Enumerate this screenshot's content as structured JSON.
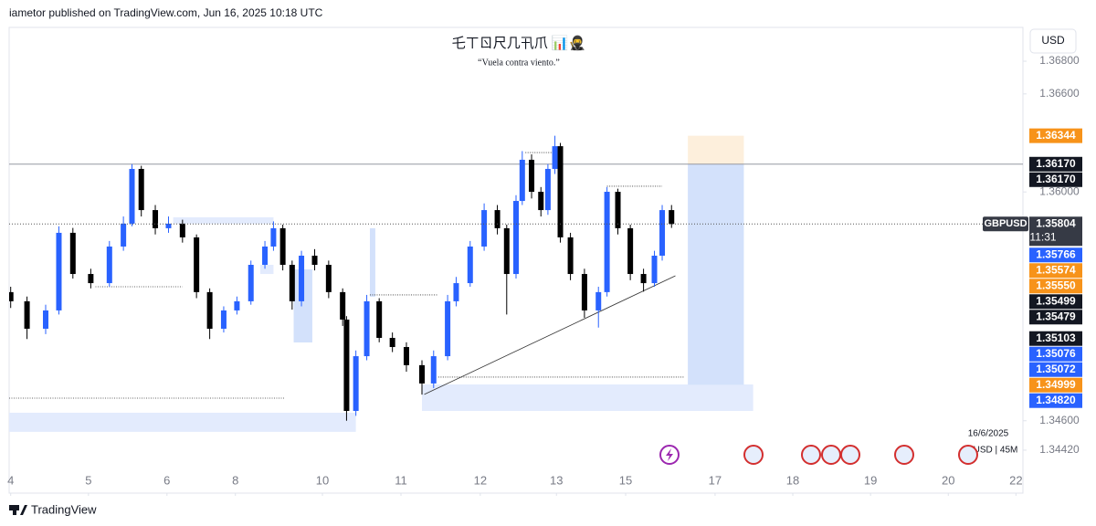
{
  "header": "iametor published on TradingView.com, Jun 16, 2025 10:18 UTC",
  "footer": "TradingView",
  "currency_button": "USD",
  "date_label": "16/6/2025",
  "interval_label": "USD | 45M",
  "chart_data": {
    "type": "candlestick",
    "title": "乇ㄒㄖ尺几卂爪 📊🥷",
    "subtitle": "“Vuela contra viento.”",
    "up_color": "#2962ff",
    "down_color": "#000000",
    "xlim": [
      -0.02,
      13.02
    ],
    "ylim": [
      1.34157,
      1.37007
    ],
    "xticks": [
      {
        "value": 0,
        "label": "4"
      },
      {
        "value": 1,
        "label": "5"
      },
      {
        "value": 2.01,
        "label": "6"
      },
      {
        "value": 2.89,
        "label": "8"
      },
      {
        "value": 4.01,
        "label": "10"
      },
      {
        "value": 5.02,
        "label": "11"
      },
      {
        "value": 6.04,
        "label": "12"
      },
      {
        "value": 7.02,
        "label": "13"
      },
      {
        "value": 7.91,
        "label": "15"
      },
      {
        "value": 9.06,
        "label": "17"
      },
      {
        "value": 10.06,
        "label": "18"
      },
      {
        "value": 11.06,
        "label": "19"
      },
      {
        "value": 12.06,
        "label": "20"
      },
      {
        "value": 12.93,
        "label": "22"
      }
    ],
    "yticks": [
      {
        "value": 1.368,
        "label": "1.36800"
      },
      {
        "value": 1.366,
        "label": "1.36600"
      },
      {
        "value": 1.36,
        "label": "1.36000"
      },
      {
        "value": 1.346,
        "label": "1.34600"
      },
      {
        "value": 1.3442,
        "label": "1.34420"
      }
    ],
    "candles": {
      "x": [
        0,
        0.21,
        0.45,
        0.62,
        0.8,
        1.03,
        1.27,
        1.45,
        1.56,
        1.68,
        1.86,
        2.03,
        2.21,
        2.39,
        2.56,
        2.74,
        2.91,
        3.09,
        3.27,
        3.38,
        3.5,
        3.62,
        3.74,
        3.91,
        4.09,
        4.27,
        4.32,
        4.44,
        4.58,
        4.74,
        4.91,
        5.09,
        5.29,
        5.44,
        5.62,
        5.73,
        5.91,
        6.09,
        6.26,
        6.38,
        6.5,
        6.58,
        6.7,
        6.82,
        6.91,
        7.0,
        7.07,
        7.2,
        7.38,
        7.56,
        7.67,
        7.81,
        7.97,
        8.14,
        8.28,
        8.38,
        8.5
      ],
      "open": [
        1.35387,
        1.35331,
        1.35163,
        1.35275,
        1.3575,
        1.35498,
        1.35442,
        1.35666,
        1.35806,
        1.36141,
        1.35889,
        1.35778,
        1.35806,
        1.35722,
        1.35387,
        1.35163,
        1.35275,
        1.35331,
        1.35554,
        1.35666,
        1.35778,
        1.35554,
        1.35331,
        1.3561,
        1.35554,
        1.35387,
        1.35219,
        1.3466,
        1.34995,
        1.35331,
        1.35107,
        1.35051,
        1.3494,
        1.34828,
        1.34995,
        1.35331,
        1.35442,
        1.35666,
        1.35889,
        1.35778,
        1.35498,
        1.35945,
        1.36197,
        1.36001,
        1.35889,
        1.36141,
        1.3628,
        1.35722,
        1.35498,
        1.35275,
        1.35387,
        1.36001,
        1.35778,
        1.35498,
        1.35442,
        1.3561,
        1.35889
      ],
      "high": [
        1.3542,
        1.3536,
        1.3531,
        1.3579,
        1.3578,
        1.3553,
        1.357,
        1.3585,
        1.3617,
        1.3616,
        1.3592,
        1.3585,
        1.3583,
        1.3574,
        1.3541,
        1.353,
        1.3536,
        1.3558,
        1.357,
        1.3582,
        1.358,
        1.3558,
        1.3564,
        1.3565,
        1.3558,
        1.3541,
        1.3524,
        1.3503,
        1.3537,
        1.3535,
        1.3514,
        1.3508,
        1.3497,
        1.3503,
        1.3537,
        1.3548,
        1.357,
        1.3593,
        1.3592,
        1.358,
        1.3598,
        1.3625,
        1.3623,
        1.3603,
        1.3617,
        1.36344,
        1.363,
        1.3575,
        1.3553,
        1.3542,
        1.3603,
        1.3602,
        1.358,
        1.3553,
        1.3564,
        1.3592,
        1.3592
      ],
      "low": [
        1.3529,
        1.351,
        1.3513,
        1.3525,
        1.3547,
        1.3541,
        1.3542,
        1.3564,
        1.3579,
        1.3585,
        1.3574,
        1.3575,
        1.3569,
        1.3535,
        1.351,
        1.3514,
        1.3525,
        1.3531,
        1.3553,
        1.3564,
        1.3552,
        1.3528,
        1.353,
        1.3552,
        1.3535,
        1.3518,
        1.346,
        1.3463,
        1.3497,
        1.3508,
        1.3502,
        1.349,
        1.3476,
        1.348,
        1.3497,
        1.353,
        1.3542,
        1.3564,
        1.3574,
        1.3525,
        1.3547,
        1.3592,
        1.3596,
        1.3585,
        1.3586,
        1.3611,
        1.3569,
        1.3546,
        1.3523,
        1.3517,
        1.3536,
        1.3574,
        1.3546,
        1.3539,
        1.3542,
        1.3558,
        1.3578
      ],
      "close": [
        1.35331,
        1.35163,
        1.35275,
        1.3575,
        1.35498,
        1.35442,
        1.35666,
        1.35806,
        1.36141,
        1.35889,
        1.35778,
        1.35806,
        1.35722,
        1.35387,
        1.35163,
        1.35275,
        1.35331,
        1.35554,
        1.35666,
        1.35778,
        1.35554,
        1.35331,
        1.3561,
        1.35554,
        1.35387,
        1.35219,
        1.3466,
        1.34995,
        1.35331,
        1.35107,
        1.35051,
        1.3494,
        1.34828,
        1.34995,
        1.35331,
        1.35442,
        1.35666,
        1.35889,
        1.35778,
        1.35498,
        1.35945,
        1.36197,
        1.36001,
        1.35889,
        1.36141,
        1.3628,
        1.35722,
        1.35498,
        1.35275,
        1.35387,
        1.36001,
        1.35778,
        1.35498,
        1.35442,
        1.3561,
        1.35889,
        1.35804
      ]
    },
    "zones": [
      {
        "x": [
          -0.02,
          4.44
        ],
        "y": [
          1.34532,
          1.34649
        ],
        "color": "#e3ebfd"
      },
      {
        "x": [
          5.29,
          9.55
        ],
        "y": [
          1.3466,
          1.34822
        ],
        "color": "#e3ebfd"
      },
      {
        "x": [
          8.71,
          9.43
        ],
        "y": [
          1.3617,
          1.36344
        ],
        "color": "#fdefdc"
      },
      {
        "x": [
          8.71,
          9.43
        ],
        "y": [
          1.3482,
          1.3617
        ],
        "color": "#d3e1fb"
      },
      {
        "x": [
          3.64,
          3.88
        ],
        "y": [
          1.35079,
          1.35526
        ],
        "color": "#d3e1fb"
      },
      {
        "x": [
          4.62,
          4.69
        ],
        "y": [
          1.35359,
          1.35778
        ],
        "color": "#d3e1fb"
      },
      {
        "x": [
          2.09,
          3.38
        ],
        "y": [
          1.35806,
          1.35845
        ],
        "color": "#e3ebfd"
      },
      {
        "x": [
          3.21,
          3.38
        ],
        "y": [
          1.35498,
          1.35554
        ],
        "color": "#e3ebfd"
      }
    ],
    "segments": [
      {
        "x": [
          -0.02,
          3.53
        ],
        "y": [
          1.34738,
          1.34738
        ],
        "dashed": true
      },
      {
        "x": [
          1.09,
          2.21
        ],
        "y": [
          1.3542,
          1.3542
        ],
        "dashed": true
      },
      {
        "x": [
          4.62,
          5.5
        ],
        "y": [
          1.3537,
          1.3537
        ],
        "dashed": true
      },
      {
        "x": [
          5.5,
          8.67
        ],
        "y": [
          1.34867,
          1.34867
        ],
        "dashed": true
      },
      {
        "x": [
          6.62,
          7.03
        ],
        "y": [
          1.36241,
          1.36241
        ],
        "dashed": true
      },
      {
        "x": [
          7.67,
          8.38
        ],
        "y": [
          1.36035,
          1.36035
        ],
        "dashed": true
      },
      {
        "x": [
          5.32,
          8.55
        ],
        "y": [
          1.34761,
          1.35487
        ],
        "dashed": false
      }
    ],
    "hlines": [
      {
        "value": 1.3617,
        "color": "#9598a1"
      }
    ],
    "price_labels": [
      {
        "value": 1.36344,
        "label": "1.36344",
        "color": "#f7931a"
      },
      {
        "value": 1.3617,
        "label": "1.36170",
        "color": "#131722"
      },
      {
        "value": 1.3617,
        "label": "1.36170",
        "color": "#131722"
      },
      {
        "name": "GBPUSD",
        "value": 1.35804,
        "label": "1.35804",
        "countdown": "11:31",
        "color": "#363a45"
      },
      {
        "value": 1.35766,
        "label": "1.35766",
        "color": "#2962ff"
      },
      {
        "value": 1.35574,
        "label": "1.35574",
        "color": "#f7931a"
      },
      {
        "value": 1.3555,
        "label": "1.35550",
        "color": "#f7931a"
      },
      {
        "value": 1.35499,
        "label": "1.35499",
        "color": "#131722"
      },
      {
        "value": 1.35479,
        "label": "1.35479",
        "color": "#131722"
      },
      {
        "value": 1.35103,
        "label": "1.35103",
        "color": "#131722"
      },
      {
        "value": 1.35076,
        "label": "1.35076",
        "color": "#2962ff"
      },
      {
        "value": 1.35072,
        "label": "1.35072",
        "color": "#2962ff"
      },
      {
        "value": 1.34999,
        "label": "1.34999",
        "color": "#f7931a"
      },
      {
        "value": 1.3482,
        "label": "1.34820",
        "color": "#2962ff"
      }
    ]
  }
}
